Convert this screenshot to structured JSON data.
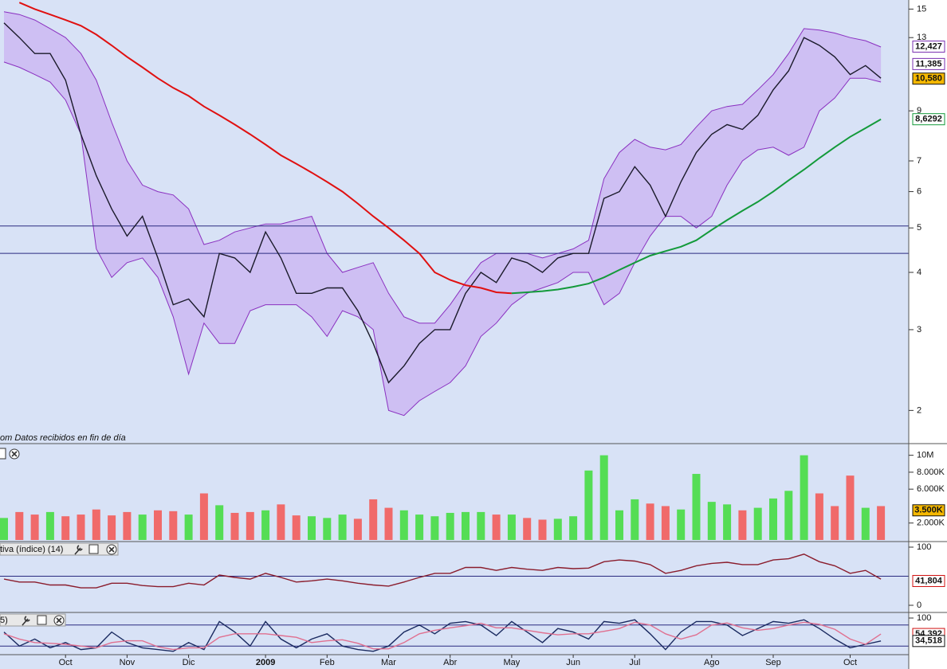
{
  "chart_data": [
    {
      "type": "line",
      "log": true,
      "note": "om  Datos recibidos en fin de día",
      "categories": [
        null,
        null,
        null,
        null,
        "Oct",
        null,
        null,
        null,
        "Nov",
        null,
        null,
        null,
        "Dic",
        null,
        null,
        null,
        null,
        "2009",
        null,
        null,
        null,
        "Feb",
        null,
        null,
        null,
        "Mar",
        null,
        null,
        null,
        "Abr",
        null,
        null,
        null,
        "May",
        null,
        null,
        null,
        "Jun",
        null,
        null,
        null,
        "Jul",
        null,
        null,
        null,
        null,
        "Ago",
        null,
        null,
        null,
        "Sep",
        null,
        null,
        null,
        null,
        "Oct",
        null,
        null
      ],
      "series": [
        {
          "color": "#1a1a2a",
          "values": [
            14,
            13,
            12,
            12,
            10.5,
            8,
            6.5,
            5.5,
            4.8,
            5.3,
            4.3,
            3.4,
            3.5,
            3.2,
            4.4,
            4.3,
            4.0,
            4.9,
            4.3,
            3.6,
            3.6,
            3.7,
            3.7,
            3.3,
            2.8,
            2.3,
            2.5,
            2.8,
            3.0,
            3.0,
            3.6,
            4.0,
            3.8,
            4.3,
            4.2,
            4.0,
            4.3,
            4.4,
            4.4,
            5.8,
            6.0,
            6.8,
            6.2,
            5.3,
            6.3,
            7.3,
            8.0,
            8.4,
            8.2,
            8.8,
            10.0,
            11.0,
            13.0,
            12.5,
            11.8,
            10.8,
            11.3,
            10.6
          ]
        },
        {
          "color": "#e01010",
          "values": [
            null,
            15.5,
            15.0,
            14.6,
            14.2,
            13.8,
            13.2,
            12.5,
            11.8,
            11.2,
            10.6,
            10.1,
            9.7,
            9.2,
            8.8,
            8.4,
            8.0,
            7.6,
            7.2,
            6.9,
            6.6,
            6.3,
            6.0,
            5.65,
            5.3,
            5.0,
            4.7,
            4.4,
            4.0,
            3.85,
            3.75,
            3.7,
            3.62,
            3.6,
            null,
            null,
            null,
            null,
            null,
            null,
            null,
            null,
            null,
            null,
            null,
            null,
            null,
            null,
            null,
            null,
            null,
            null,
            null,
            null,
            null,
            null,
            null,
            null
          ]
        },
        {
          "color": "#139a3a",
          "values": [
            null,
            null,
            null,
            null,
            null,
            null,
            null,
            null,
            null,
            null,
            null,
            null,
            null,
            null,
            null,
            null,
            null,
            null,
            null,
            null,
            null,
            null,
            null,
            null,
            null,
            null,
            null,
            null,
            null,
            null,
            null,
            null,
            null,
            3.6,
            3.62,
            3.64,
            3.67,
            3.72,
            3.78,
            3.9,
            4.05,
            4.2,
            4.35,
            4.45,
            4.55,
            4.7,
            4.95,
            5.2,
            5.45,
            5.7,
            6.0,
            6.35,
            6.7,
            7.1,
            7.5,
            7.9,
            8.25,
            8.63
          ]
        }
      ],
      "band": {
        "color": "#8a30c0",
        "fill": "#cdb8f2",
        "upper": [
          14.8,
          14.6,
          14.2,
          13.6,
          13,
          12,
          10.5,
          8.5,
          7,
          6.2,
          6,
          5.9,
          5.5,
          4.6,
          4.7,
          4.9,
          5.0,
          5.1,
          5.1,
          5.2,
          5.3,
          4.4,
          4.0,
          4.1,
          4.2,
          3.6,
          3.2,
          3.1,
          3.1,
          3.4,
          3.8,
          4.2,
          4.4,
          4.4,
          4.4,
          4.3,
          4.4,
          4.5,
          4.7,
          6.4,
          7.3,
          7.8,
          7.5,
          7.4,
          7.6,
          8.3,
          9.0,
          9.2,
          9.3,
          10.0,
          10.8,
          12.0,
          13.6,
          13.5,
          13.3,
          13.0,
          12.8,
          12.4
        ],
        "lower": [
          11.5,
          11.2,
          10.8,
          10.4,
          9.5,
          8.0,
          4.5,
          3.9,
          4.2,
          4.3,
          3.9,
          3.2,
          2.4,
          3.1,
          2.8,
          2.8,
          3.3,
          3.4,
          3.4,
          3.4,
          3.2,
          2.9,
          3.3,
          3.2,
          3.0,
          2.0,
          1.95,
          2.1,
          2.2,
          2.3,
          2.5,
          2.9,
          3.1,
          3.4,
          3.6,
          3.7,
          3.8,
          4.0,
          4.0,
          3.4,
          3.6,
          4.2,
          4.8,
          5.3,
          5.3,
          5.0,
          5.3,
          6.2,
          7.0,
          7.4,
          7.5,
          7.2,
          7.5,
          9.0,
          9.6,
          10.6,
          10.6,
          10.4
        ]
      },
      "hlines": [
        5.05,
        4.4
      ],
      "ylim": [
        1.7,
        15.7
      ],
      "yticks": [
        2,
        3,
        4,
        5,
        6,
        7,
        9,
        13,
        15
      ],
      "markers": [
        {
          "value": 12.427,
          "label": "12,427",
          "color": "#7a2fb0",
          "background": "#ffffff"
        },
        {
          "value": 11.385,
          "label": "11,385",
          "color": "#7a2fb0",
          "background": "#ffffff"
        },
        {
          "value": 10.58,
          "label": "10,580",
          "color": "#111111",
          "background": "#f5b800"
        },
        {
          "value": 8.6292,
          "label": "8,6292",
          "color": "#139a3a",
          "background": "#ffffff"
        }
      ]
    },
    {
      "type": "bar",
      "up_color": "#55dd55",
      "down_color": "#f06a6a",
      "values": [
        2600,
        3300,
        3000,
        3300,
        2800,
        3000,
        3600,
        2900,
        3300,
        3000,
        3500,
        3400,
        3000,
        5500,
        4100,
        3200,
        3300,
        3500,
        4200,
        2900,
        2800,
        2600,
        3000,
        2500,
        4800,
        3800,
        3500,
        3000,
        2800,
        3200,
        3300,
        3300,
        3000,
        3000,
        2600,
        2400,
        2500,
        2800,
        8200,
        10000,
        3500,
        4800,
        4300,
        4000,
        3600,
        7800,
        4500,
        4200,
        3500,
        3800,
        4900,
        5800,
        10000,
        5500,
        4000,
        7600,
        3800,
        4000
      ],
      "ylim": [
        0,
        11000
      ],
      "yticks": [
        {
          "value": 2000,
          "label": "2.000K"
        },
        {
          "value": 6000,
          "label": "6.000K"
        },
        {
          "value": 8000,
          "label": "8.000K"
        },
        {
          "value": 10000,
          "label": "10M"
        }
      ],
      "markers": [
        {
          "value": 3500,
          "label": "3.500K",
          "color": "#111111",
          "background": "#f5b800"
        }
      ]
    },
    {
      "type": "line",
      "title": "tiva (índice) (14)",
      "series": [
        {
          "color": "#8a1c2c",
          "values": [
            45,
            40,
            40,
            35,
            35,
            30,
            30,
            38,
            38,
            34,
            32,
            32,
            38,
            35,
            52,
            48,
            45,
            55,
            48,
            40,
            42,
            45,
            42,
            38,
            35,
            33,
            40,
            48,
            55,
            55,
            65,
            65,
            60,
            65,
            62,
            60,
            65,
            63,
            64,
            75,
            78,
            76,
            70,
            55,
            60,
            68,
            72,
            74,
            70,
            70,
            78,
            80,
            88,
            75,
            68,
            55,
            60,
            45
          ]
        }
      ],
      "hlines": [
        50
      ],
      "ylim": [
        0,
        100
      ],
      "yticks": [
        0,
        100
      ],
      "markers": [
        {
          "value": 41.804,
          "label": "41,804",
          "color": "#d01010",
          "background": "#ffffff"
        }
      ]
    },
    {
      "type": "line",
      "title": "5)",
      "series": [
        {
          "color": "#1a2a60",
          "values": [
            60,
            20,
            40,
            15,
            30,
            10,
            15,
            60,
            30,
            15,
            10,
            5,
            30,
            10,
            90,
            60,
            20,
            90,
            40,
            15,
            40,
            55,
            20,
            10,
            5,
            20,
            60,
            80,
            55,
            85,
            90,
            80,
            50,
            90,
            60,
            30,
            70,
            60,
            40,
            90,
            85,
            95,
            55,
            10,
            60,
            90,
            90,
            80,
            50,
            70,
            90,
            85,
            95,
            70,
            40,
            15,
            25,
            34.518
          ]
        },
        {
          "color": "#e07090",
          "values": [
            55,
            40,
            30,
            28,
            25,
            20,
            15,
            30,
            35,
            35,
            18,
            10,
            15,
            15,
            45,
            55,
            55,
            55,
            50,
            45,
            30,
            35,
            38,
            28,
            12,
            12,
            30,
            55,
            65,
            72,
            78,
            85,
            72,
            72,
            65,
            58,
            52,
            55,
            55,
            62,
            70,
            88,
            80,
            55,
            40,
            52,
            80,
            86,
            72,
            65,
            70,
            80,
            88,
            82,
            68,
            40,
            25,
            54.392
          ]
        }
      ],
      "hlines": [
        20,
        80
      ],
      "ylim": [
        0,
        100
      ],
      "yticks": [
        100
      ],
      "markers": [
        {
          "value": 54.392,
          "label": "54,392",
          "color": "#d01010",
          "background": "#ffffff"
        },
        {
          "value": 34.518,
          "label": "34,518",
          "color": "#111111",
          "background": "#ffffff"
        }
      ]
    }
  ]
}
